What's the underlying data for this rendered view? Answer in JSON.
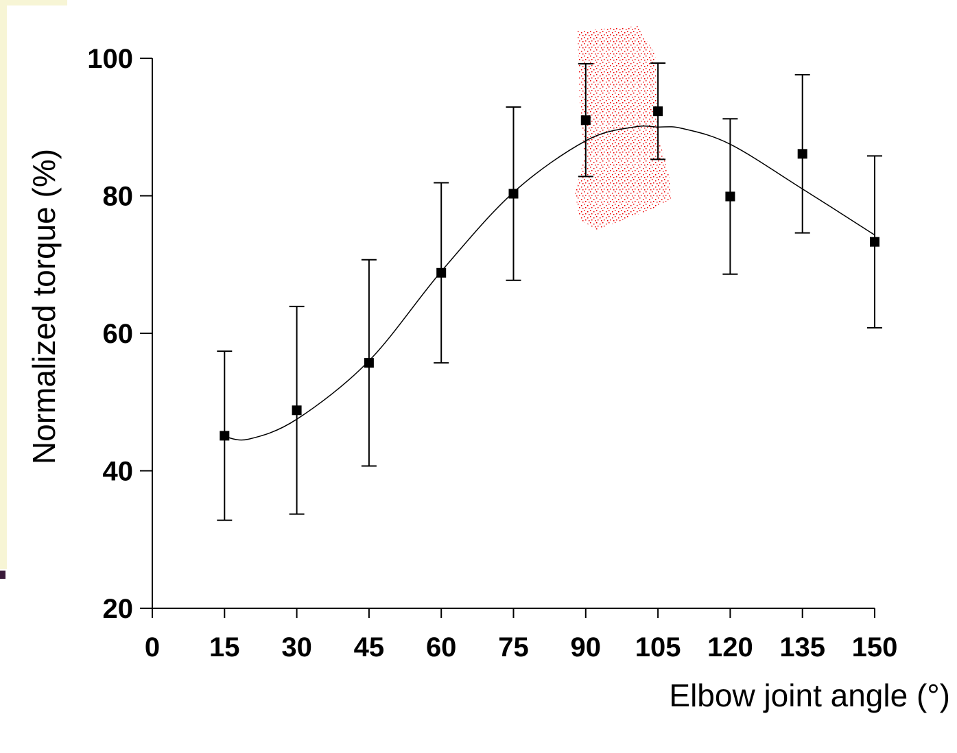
{
  "chart_data": {
    "type": "scatter",
    "x_label": "Elbow joint angle (°)",
    "y_label": "Normalized torque (%)",
    "x": [
      15,
      30,
      45,
      60,
      75,
      90,
      105,
      120,
      135,
      150
    ],
    "values": [
      45.1,
      48.8,
      55.7,
      68.8,
      80.3,
      91.0,
      92.3,
      79.9,
      86.1,
      73.3
    ],
    "errors": [
      12.3,
      15.1,
      15.0,
      13.1,
      12.6,
      8.2,
      7.0,
      11.3,
      11.5,
      12.5
    ],
    "color": "#000000",
    "fit": {
      "x": [
        15,
        20,
        30,
        45,
        60,
        75,
        90,
        100,
        105,
        110,
        120,
        135,
        150
      ],
      "values": [
        45.0,
        44.6,
        47.5,
        56.0,
        69.0,
        80.5,
        88.0,
        90.0,
        90.0,
        89.8,
        87.5,
        81.0,
        74.3
      ]
    },
    "xlim": [
      0,
      150
    ],
    "xticks": [
      0,
      15,
      30,
      45,
      60,
      75,
      90,
      105,
      120,
      135,
      150
    ],
    "ylim": [
      20,
      100
    ],
    "yticks": [
      20,
      40,
      60,
      80,
      100
    ],
    "grid": false
  }
}
